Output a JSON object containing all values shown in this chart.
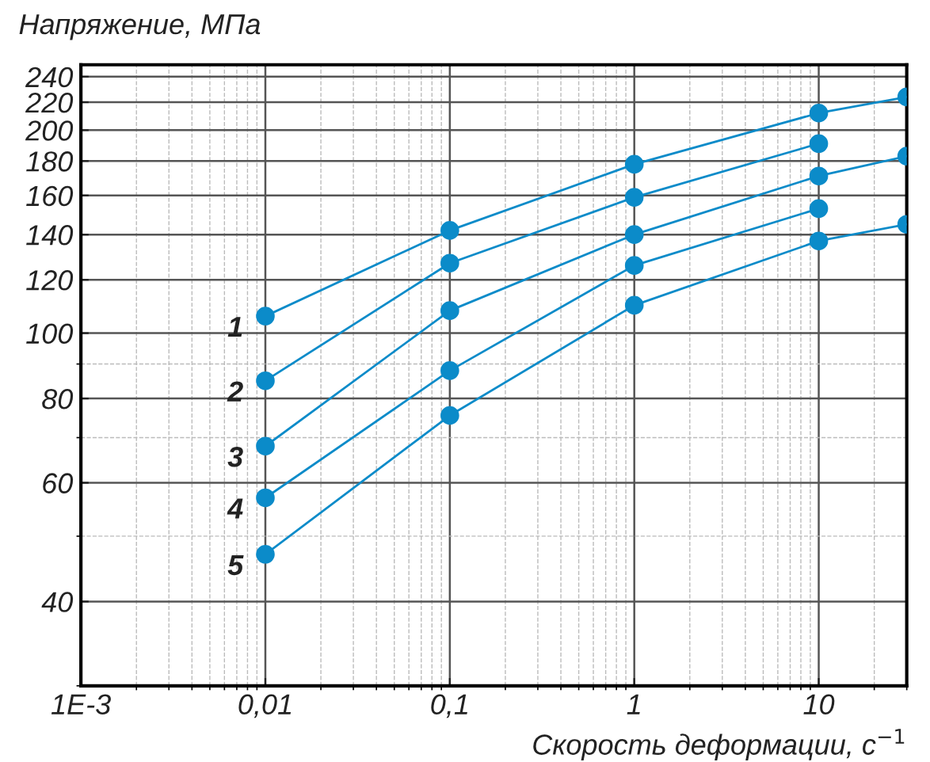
{
  "chart_data": {
    "type": "line",
    "ylabel": "Напряжение, МПа",
    "xlabel": "Скорость деформации, с$^{−1}$",
    "log": "xy",
    "grid": true,
    "marker": "circle",
    "line_style": "solid",
    "legend": false,
    "xlim": [
      0.001,
      30
    ],
    "ylim": [
      30,
      250
    ],
    "xticks": [
      {
        "value": 0.001,
        "label": "1E-3"
      },
      {
        "value": 0.01,
        "label": "0,01"
      },
      {
        "value": 0.1,
        "label": "0,1"
      },
      1,
      10
    ],
    "yticks": [
      40,
      60,
      80,
      100,
      120,
      140,
      160,
      180,
      200,
      220,
      240
    ],
    "series": [
      {
        "name": "1",
        "color": "#0b8bc9",
        "x": [
          0.01,
          0.1,
          1,
          10,
          30
        ],
        "values": [
          106,
          142,
          178,
          212,
          224
        ]
      },
      {
        "name": "2",
        "color": "#0b8bc9",
        "x": [
          0.01,
          0.1,
          1,
          10
        ],
        "values": [
          85,
          127,
          159,
          191
        ]
      },
      {
        "name": "3",
        "color": "#0b8bc9",
        "x": [
          0.01,
          0.1,
          1,
          10,
          30
        ],
        "values": [
          68,
          108,
          140,
          171,
          183
        ]
      },
      {
        "name": "4",
        "color": "#0b8bc9",
        "x": [
          0.01,
          0.1,
          1,
          10
        ],
        "values": [
          57,
          88,
          126,
          153
        ]
      },
      {
        "name": "5",
        "color": "#0b8bc9",
        "x": [
          0.01,
          0.1,
          1,
          10,
          30
        ],
        "values": [
          47,
          75.5,
          110,
          137,
          145
        ]
      }
    ]
  }
}
